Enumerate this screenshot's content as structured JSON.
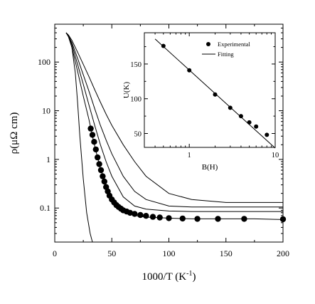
{
  "chart_data": [
    {
      "type": "line",
      "xlabel": "1000/T (K",
      "xlabel_sup": "-1",
      "xlabel_tail": ")",
      "ylabel": "ρ(μΩ cm)",
      "x_scale": "linear",
      "y_scale": "log",
      "xlim": [
        0,
        200
      ],
      "ylim": [
        0.02,
        600
      ],
      "x_ticks": [
        0,
        50,
        100,
        150,
        200
      ],
      "x_tick_labels": [
        "0",
        "50",
        "100",
        "150",
        "200"
      ],
      "y_ticks": [
        0.1,
        1,
        10,
        100
      ],
      "y_tick_labels": [
        "0.1",
        "1",
        "10",
        "100"
      ],
      "grid": false,
      "series": [
        {
          "style": "line",
          "x": [
            10,
            12,
            15,
            18,
            20,
            22,
            25,
            28,
            31,
            33
          ],
          "y": [
            400,
            350,
            200,
            60,
            15,
            3,
            0.4,
            0.08,
            0.03,
            0.02
          ]
        },
        {
          "style": "line",
          "x": [
            10,
            12,
            15,
            20,
            25,
            30,
            35,
            40,
            45,
            50,
            60,
            70,
            80,
            100,
            120,
            150,
            175,
            200
          ],
          "y": [
            400,
            360,
            280,
            160,
            90,
            50,
            27,
            15,
            8.5,
            5,
            2,
            0.9,
            0.45,
            0.2,
            0.15,
            0.13,
            0.13,
            0.13
          ]
        },
        {
          "style": "line",
          "x": [
            10,
            12,
            15,
            20,
            25,
            30,
            35,
            40,
            45,
            50,
            60,
            70,
            80,
            100,
            120,
            150,
            175,
            200
          ],
          "y": [
            400,
            350,
            250,
            120,
            55,
            25,
            11,
            5,
            2.5,
            1.3,
            0.45,
            0.22,
            0.15,
            0.11,
            0.105,
            0.105,
            0.105,
            0.105
          ]
        },
        {
          "style": "line",
          "x": [
            10,
            12,
            15,
            20,
            25,
            30,
            35,
            40,
            45,
            50,
            60,
            70,
            80,
            100,
            120,
            150,
            175,
            200
          ],
          "y": [
            400,
            340,
            230,
            90,
            35,
            13,
            5,
            2,
            0.9,
            0.45,
            0.17,
            0.11,
            0.095,
            0.087,
            0.085,
            0.085,
            0.085,
            0.085
          ]
        },
        {
          "style": "line",
          "x": [
            10,
            12,
            15,
            20,
            25,
            30,
            33,
            36,
            40,
            45,
            50,
            55,
            60,
            70,
            80,
            100,
            120,
            150,
            175,
            200
          ],
          "y": [
            400,
            330,
            200,
            65,
            20,
            6.5,
            3,
            1.5,
            0.65,
            0.3,
            0.16,
            0.11,
            0.085,
            0.07,
            0.065,
            0.062,
            0.06,
            0.06,
            0.06,
            0.058
          ]
        },
        {
          "style": "markers",
          "x": [
            31.5,
            33,
            34.5,
            36,
            37.5,
            39,
            40.5,
            42,
            43.5,
            45,
            46.5,
            48,
            50,
            52,
            54,
            56,
            58,
            60,
            63,
            66,
            70,
            75,
            80,
            86,
            92,
            100,
            112,
            125,
            143,
            166,
            200
          ],
          "y": [
            4.3,
            3.2,
            2.3,
            1.6,
            1.1,
            0.8,
            0.6,
            0.45,
            0.35,
            0.27,
            0.22,
            0.18,
            0.15,
            0.13,
            0.115,
            0.105,
            0.097,
            0.09,
            0.085,
            0.08,
            0.076,
            0.072,
            0.069,
            0.066,
            0.064,
            0.062,
            0.061,
            0.06,
            0.06,
            0.06,
            0.059
          ]
        }
      ]
    },
    {
      "type": "scatter",
      "xlabel": "B(H)",
      "ylabel": "U(K)",
      "x_scale": "log",
      "y_scale": "linear",
      "xlim": [
        0.3,
        10
      ],
      "ylim": [
        30,
        195
      ],
      "x_ticks": [
        1,
        10
      ],
      "x_tick_labels": [
        "1",
        "10"
      ],
      "y_ticks": [
        50,
        100,
        150
      ],
      "y_tick_labels": [
        "50",
        "100",
        "150"
      ],
      "legend": {
        "position": "top-right",
        "entries": [
          "Experimental",
          "Fitting"
        ]
      },
      "series": [
        {
          "name": "Experimental",
          "style": "markers",
          "x": [
            0.5,
            1.0,
            2.0,
            3.0,
            4.0,
            5.0,
            6.0,
            8.0
          ],
          "y": [
            176,
            141,
            106,
            87,
            75,
            66,
            60,
            48
          ]
        },
        {
          "name": "Fitting",
          "style": "line",
          "x": [
            0.4,
            10
          ],
          "y": [
            186,
            29
          ]
        }
      ]
    }
  ]
}
